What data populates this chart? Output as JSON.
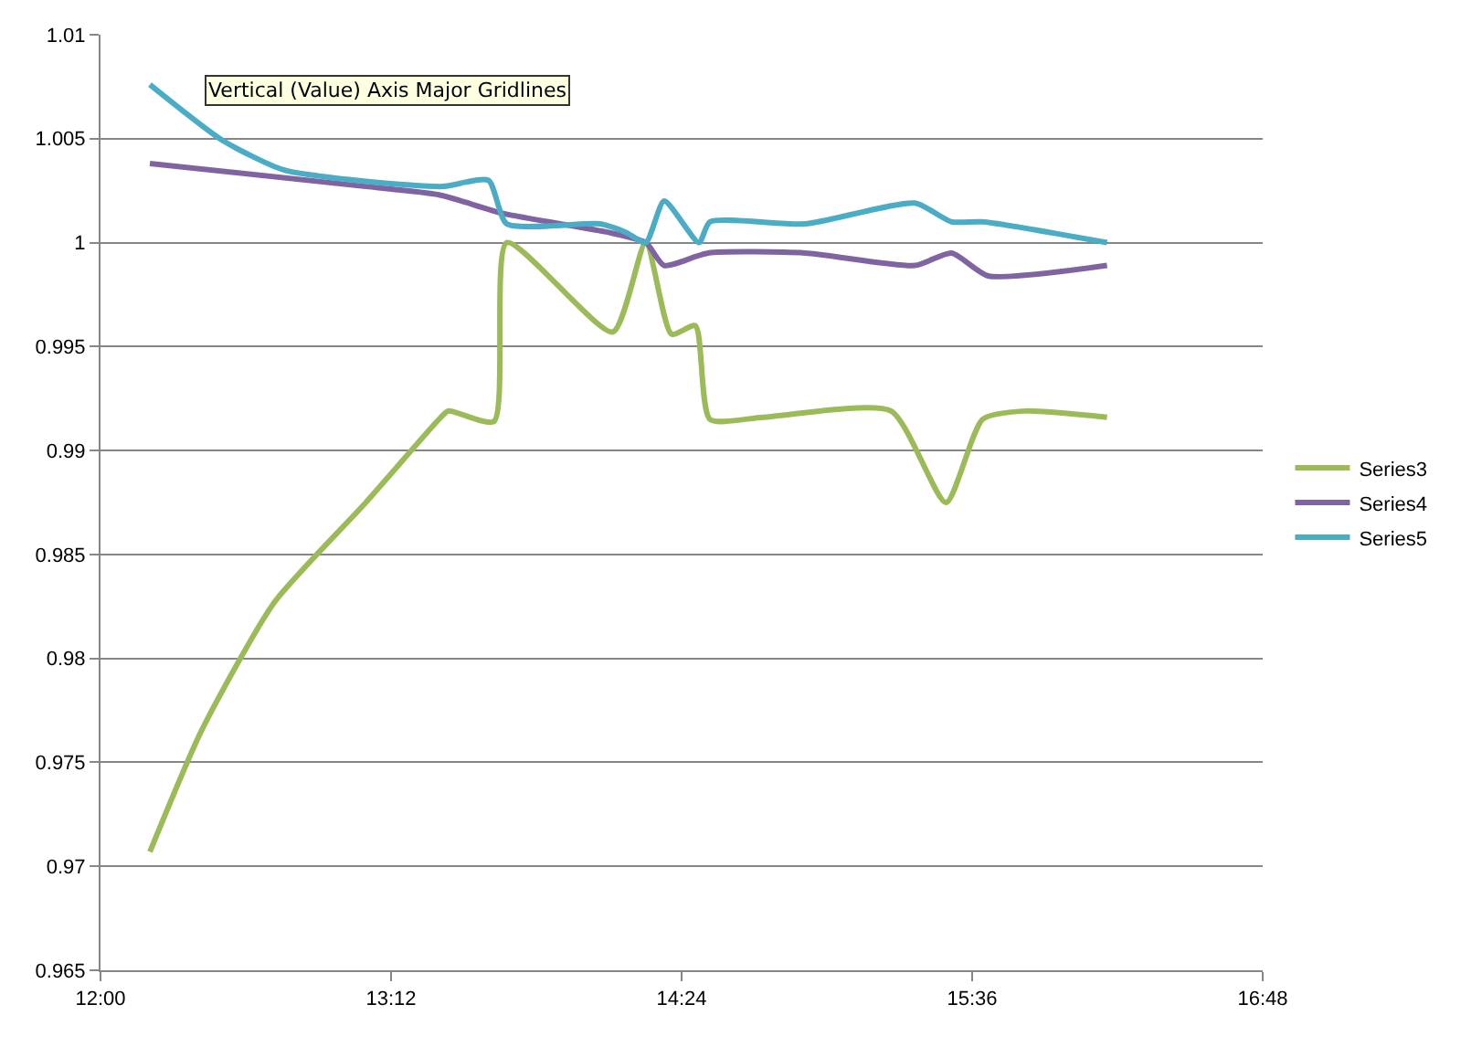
{
  "chart_data": {
    "type": "line",
    "xlim": [
      12,
      16.8
    ],
    "xticks": [
      {
        "value": 12,
        "label": "12:00"
      },
      {
        "value": 13.2,
        "label": "13:12"
      },
      {
        "value": 14.4,
        "label": "14:24"
      },
      {
        "value": 15.6,
        "label": "15:36"
      },
      {
        "value": 16.8,
        "label": "16:48"
      }
    ],
    "ylim": [
      0.965,
      1.01
    ],
    "yticks": [
      0.965,
      0.97,
      0.975,
      0.98,
      0.985,
      0.99,
      0.995,
      1,
      1.005,
      1.01
    ],
    "grid": "y",
    "legend": "right",
    "marker": "none",
    "line_style": "solid",
    "annotations": [
      "Vertical (Value) Axis Major Gridlines"
    ],
    "series": [
      {
        "name": "Series3",
        "color": "#9bbb59",
        "x": [
          12.204,
          12.416,
          12.718,
          13.096,
          13.398,
          13.436,
          13.625,
          13.678,
          14.116,
          14.252,
          14.358,
          14.457,
          14.517,
          14.736,
          15.265,
          15.492,
          15.643,
          15.817,
          16.157
        ],
        "values": [
          0.9707,
          0.9765,
          0.9827,
          0.9875,
          0.9915,
          0.9919,
          0.9914,
          1.0,
          0.9957,
          1.0,
          0.9956,
          0.996,
          0.9915,
          0.9916,
          0.9919,
          0.9875,
          0.9915,
          0.9919,
          0.9916
        ]
      },
      {
        "name": "Series4",
        "color": "#8064a2",
        "x": [
          12.204,
          13.096,
          13.398,
          13.663,
          14.094,
          14.252,
          14.328,
          14.509,
          14.91,
          15.364,
          15.515,
          15.666,
          16.157
        ],
        "values": [
          1.0038,
          1.0027,
          1.0023,
          1.0014,
          1.0005,
          1.0,
          0.9989,
          0.9995,
          0.9995,
          0.9989,
          0.9995,
          0.9984,
          0.9989
        ]
      },
      {
        "name": "Series5",
        "color": "#4bacc6",
        "x": [
          12.204,
          12.506,
          12.756,
          13.134,
          13.413,
          13.602,
          13.678,
          14.063,
          14.169,
          14.252,
          14.328,
          14.472,
          14.517,
          14.91,
          15.364,
          15.515,
          15.643,
          16.157
        ],
        "values": [
          1.0076,
          1.0049,
          1.0035,
          1.0029,
          1.0027,
          1.003,
          1.0009,
          1.0009,
          1.0005,
          1.0,
          1.002,
          1.0,
          1.001,
          1.0009,
          1.0019,
          1.001,
          1.001,
          1.0
        ]
      }
    ]
  }
}
